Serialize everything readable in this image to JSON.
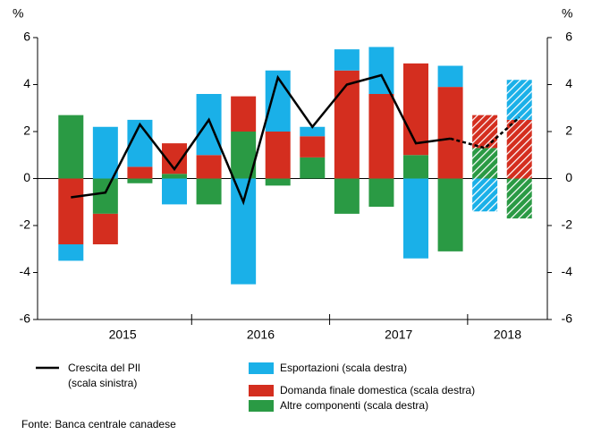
{
  "chart_data": {
    "type": "bar",
    "ylabel": "%",
    "y2label": "%",
    "categories": [
      null,
      null,
      null,
      null,
      null,
      null,
      null,
      null,
      null,
      null,
      null,
      null,
      null,
      null
    ],
    "x_groups": [
      "2015",
      "2016",
      "2017",
      "2018"
    ],
    "forecast": [
      false,
      false,
      false,
      false,
      false,
      false,
      false,
      false,
      false,
      false,
      false,
      false,
      true,
      true
    ],
    "series": [
      {
        "name": "Altre componenti (scala destra)",
        "color": "#2a9a44",
        "axis": "y2",
        "values": [
          2.7,
          -1.5,
          -0.2,
          0.2,
          -1.1,
          2.0,
          -0.3,
          0.9,
          -1.5,
          -1.2,
          1.0,
          -3.1,
          1.3,
          -1.7
        ]
      },
      {
        "name": "Domanda finale domestica (scala destra)",
        "color": "#d42e1f",
        "axis": "y2",
        "values": [
          -2.8,
          -1.3,
          0.5,
          1.3,
          1.0,
          1.5,
          2.0,
          0.9,
          4.6,
          3.6,
          3.9,
          3.9,
          1.4,
          2.5
        ]
      },
      {
        "name": "Esportazioni (scala destra)",
        "color": "#1ab0e8",
        "axis": "y2",
        "values": [
          -0.7,
          2.2,
          2.0,
          -1.1,
          2.6,
          -4.5,
          2.6,
          0.4,
          0.9,
          2.0,
          -3.4,
          0.9,
          -1.4,
          1.7
        ]
      },
      {
        "name": "Crescita del PIl (scala sinistra)",
        "color": "#000000",
        "type": "line",
        "values": [
          -0.8,
          -0.6,
          2.3,
          0.4,
          2.5,
          -1.0,
          4.3,
          2.2,
          4.0,
          4.4,
          1.5,
          1.7,
          1.3,
          2.6
        ]
      }
    ],
    "ylim": [
      -6,
      6
    ],
    "yticks": [
      -6,
      -4,
      -2,
      0,
      2,
      4,
      6
    ],
    "y2lim": [
      -6,
      6
    ],
    "y2ticks": [
      -6,
      -4,
      -2,
      0,
      2,
      4,
      6
    ],
    "source": "Fonte: Banca centrale canadese"
  }
}
